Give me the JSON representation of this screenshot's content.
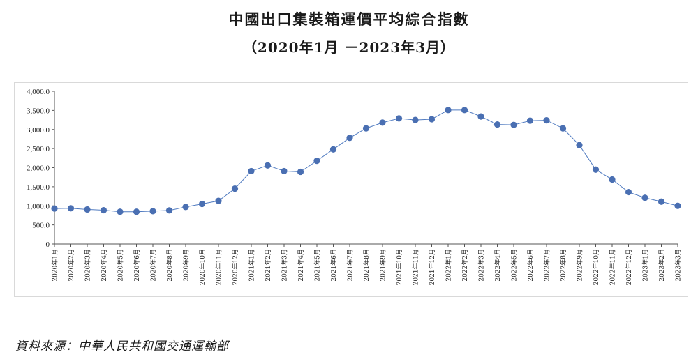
{
  "header": {
    "title": "中國出口集裝箱運價平均綜合指數",
    "subtitle": "（2020年1月 －2023年3月）"
  },
  "footer": {
    "source": "資料來源：中華人民共和國交通運輸部"
  },
  "chart_data": {
    "type": "line",
    "title": "中國出口集裝箱運價平均綜合指數",
    "subtitle": "（2020年1月 －2023年3月）",
    "xlabel": "",
    "ylabel": "",
    "ylim": [
      0,
      4000
    ],
    "yticks": [
      "0",
      "500.0",
      "1,000.0",
      "1,500.0",
      "2,000.0",
      "2,500.0",
      "3,000.0",
      "3,500.0",
      "4,000.0"
    ],
    "ytick_values": [
      0,
      500,
      1000,
      1500,
      2000,
      2500,
      3000,
      3500,
      4000
    ],
    "grid": false,
    "legend": "none",
    "line_color": "#4f7ac0",
    "marker_color": "#4a6fb2",
    "categories": [
      "2020年1月",
      "2020年2月",
      "2020年3月",
      "2020年4月",
      "2020年5月",
      "2020年6月",
      "2020年7月",
      "2020年8月",
      "2020年9月",
      "2020年10月",
      "2020年11月",
      "2020年12月",
      "2021年1月",
      "2021年2月",
      "2021年3月",
      "2021年4月",
      "2021年5月",
      "2021年6月",
      "2021年7月",
      "2021年8月",
      "2021年9月",
      "2021年10月",
      "2021年11月",
      "2021年12月",
      "2022年1月",
      "2022年2月",
      "2022年3月",
      "2022年4月",
      "2022年5月",
      "2022年6月",
      "2022年7月",
      "2022年8月",
      "2022年9月",
      "2022年10月",
      "2022年11月",
      "2022年12月",
      "2023年1月",
      "2023年2月",
      "2023年3月"
    ],
    "series": [
      {
        "values": [
          930,
          935,
          905,
          885,
          845,
          845,
          860,
          880,
          970,
          1050,
          1130,
          1450,
          1910,
          2060,
          1910,
          1890,
          2180,
          2480,
          2780,
          3030,
          3180,
          3290,
          3250,
          3270,
          3510,
          3510,
          3340,
          3130,
          3120,
          3230,
          3240,
          3030,
          2590,
          1950,
          1690,
          1360,
          1210,
          1110,
          1000
        ]
      }
    ]
  }
}
